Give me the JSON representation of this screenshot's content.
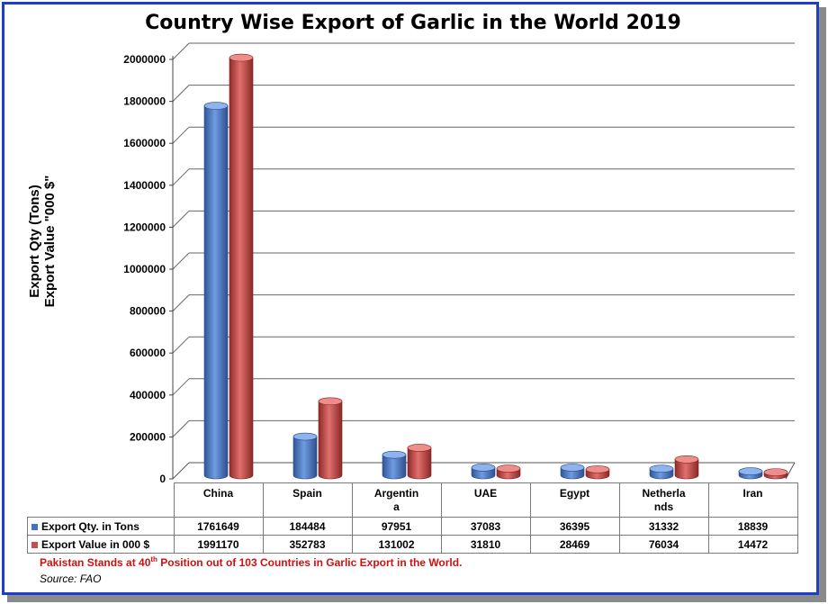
{
  "chart_data": {
    "type": "bar",
    "title": "Country Wise Export of Garlic in the World 2019",
    "ylabel_line1": "Export Qty  (Tons)",
    "ylabel_line2": "Export Value \"000 $\"",
    "ylim": [
      0,
      2000000
    ],
    "yticks": [
      0,
      200000,
      400000,
      600000,
      800000,
      1000000,
      1200000,
      1400000,
      1600000,
      1800000,
      2000000
    ],
    "categories": [
      "China",
      "Spain",
      "Argentin\na",
      "UAE",
      "Egypt",
      "Netherla\nnds",
      "Iran"
    ],
    "series": [
      {
        "name": "Export Qty. in Tons",
        "color": "#4472c4",
        "values": [
          1761649,
          184484,
          97951,
          37083,
          36395,
          31332,
          18839
        ]
      },
      {
        "name": "Export Value in 000 $",
        "color": "#c0504d",
        "values": [
          1991170,
          352783,
          131002,
          31810,
          28469,
          76034,
          14472
        ]
      }
    ],
    "grid": true,
    "legend": "table-left"
  },
  "note": {
    "before": "Pakistan Stands at 40",
    "sup": "th",
    "after": " Position out of 103 Countries in Garlic Export in the World."
  },
  "source": "Source: FAO"
}
